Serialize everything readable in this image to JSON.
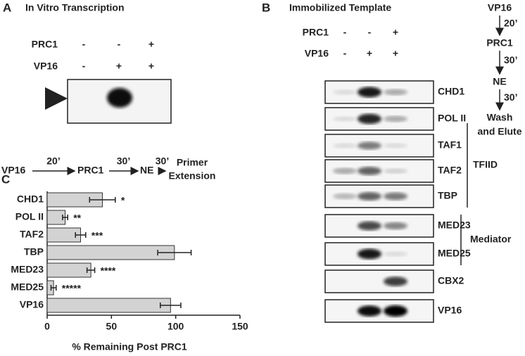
{
  "panel_a": {
    "label": "A",
    "title": "In Vitro Transcription",
    "rows": [
      {
        "name": "PRC1",
        "lanes": [
          "-",
          "-",
          "+"
        ]
      },
      {
        "name": "VP16",
        "lanes": [
          "-",
          "+",
          "+"
        ]
      }
    ],
    "scheme": {
      "steps": [
        "VP16",
        "PRC1",
        "NE"
      ],
      "times": [
        "20’",
        "30’",
        "30’"
      ],
      "final": [
        "Primer",
        "Extension"
      ]
    }
  },
  "panel_b": {
    "label": "B",
    "title": "Immobilized Template",
    "rows": [
      {
        "name": "PRC1",
        "lanes": [
          "-",
          "-",
          "+"
        ]
      },
      {
        "name": "VP16",
        "lanes": [
          "-",
          "+",
          "+"
        ]
      }
    ],
    "blots": [
      "CHD1",
      "POL II",
      "TAF1",
      "TAF2",
      "TBP",
      "MED23",
      "MED25",
      "CBX2",
      "VP16"
    ],
    "groups": [
      "TFIID",
      "Mediator"
    ],
    "scheme": {
      "steps": [
        "VP16",
        "PRC1",
        "NE"
      ],
      "times": [
        "20’",
        "30’",
        "30’"
      ],
      "final": [
        "Wash",
        "and Elute"
      ]
    }
  },
  "chart_data": {
    "type": "bar",
    "label": "C",
    "orientation": "horizontal",
    "categories": [
      "CHD1",
      "POL II",
      "TAF2",
      "TBP",
      "MED23",
      "MED25",
      "VP16"
    ],
    "values": [
      43,
      14,
      26,
      99,
      34,
      5,
      96
    ],
    "errors": [
      10,
      2,
      4,
      13,
      3,
      2,
      8
    ],
    "annotations": [
      "*",
      "**",
      "***",
      null,
      "****",
      "*****",
      null
    ],
    "color": "#d3d3d3",
    "xlabel": "% Remaining Post PRC1",
    "xlim": [
      0,
      150
    ],
    "xticks": [
      0,
      50,
      100,
      150
    ]
  }
}
